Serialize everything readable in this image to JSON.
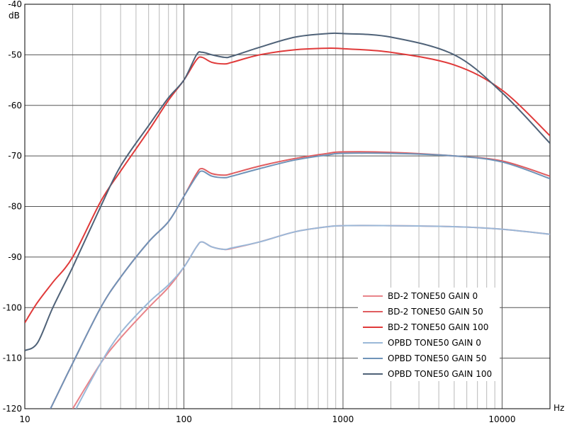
{
  "chart_data": {
    "type": "line",
    "title": "",
    "xlabel": "Hz",
    "ylabel": "dB",
    "x_scale": "log",
    "xlim": [
      10,
      20000
    ],
    "ylim": [
      -120,
      -40
    ],
    "x_ticks": [
      10,
      100,
      1000,
      10000
    ],
    "x_tick_labels": [
      "10",
      "100",
      "1000",
      "10000"
    ],
    "y_ticks": [
      -40,
      -50,
      -60,
      -70,
      -80,
      -90,
      -100,
      -110,
      -120
    ],
    "y_tick_labels": [
      "-40",
      "-50",
      "-60",
      "-70",
      "-80",
      "-90",
      "-100",
      "-110",
      "-120"
    ],
    "grid": true,
    "legend_position": "bottom-right",
    "series": [
      {
        "name": "BD-2 TONE50 GAIN 0",
        "color": "#e8848a",
        "x": [
          20,
          30,
          40,
          60,
          80,
          100,
          120,
          130,
          150,
          180,
          200,
          300,
          500,
          800,
          1000,
          2000,
          5000,
          10000,
          20000
        ],
        "y": [
          -120,
          -111,
          -106,
          -100,
          -96,
          -92,
          -88,
          -87,
          -88,
          -88.5,
          -88.3,
          -87,
          -85,
          -84,
          -83.8,
          -83.8,
          -84,
          -84.5,
          -85.5
        ]
      },
      {
        "name": "BD-2 TONE50 GAIN 50",
        "color": "#e05d60",
        "x": [
          14.5,
          20,
          30,
          40,
          60,
          80,
          100,
          120,
          130,
          150,
          180,
          200,
          300,
          500,
          800,
          1000,
          2000,
          5000,
          10000,
          20000
        ],
        "y": [
          -120,
          -111,
          -100,
          -94,
          -87,
          -83,
          -78,
          -73.5,
          -72.5,
          -73.5,
          -73.8,
          -73.5,
          -72,
          -70.5,
          -69.5,
          -69.2,
          -69.3,
          -70,
          -71,
          -74
        ]
      },
      {
        "name": "BD-2 TONE50 GAIN 100",
        "color": "#e03a3a",
        "x": [
          10,
          12,
          15,
          20,
          30,
          40,
          60,
          80,
          100,
          120,
          130,
          150,
          180,
          200,
          300,
          500,
          800,
          1000,
          2000,
          5000,
          10000,
          20000
        ],
        "y": [
          -103,
          -99,
          -95,
          -90,
          -79,
          -73,
          -65,
          -59,
          -55,
          -51,
          -50.5,
          -51.5,
          -51.8,
          -51.5,
          -50,
          -49,
          -48.7,
          -48.8,
          -49.5,
          -52,
          -57,
          -66
        ]
      },
      {
        "name": "OPBD TONE50 GAIN 0",
        "color": "#9ab8d8",
        "x": [
          21,
          30,
          40,
          60,
          80,
          100,
          120,
          130,
          150,
          180,
          200,
          300,
          500,
          800,
          1000,
          2000,
          5000,
          10000,
          20000
        ],
        "y": [
          -120,
          -111,
          -105,
          -99,
          -95.5,
          -92,
          -88,
          -87,
          -88,
          -88.5,
          -88.2,
          -87,
          -85,
          -84,
          -83.8,
          -83.8,
          -84,
          -84.5,
          -85.5
        ]
      },
      {
        "name": "OPBD TONE50 GAIN 50",
        "color": "#6f93b8",
        "x": [
          14.5,
          20,
          30,
          40,
          60,
          80,
          100,
          120,
          130,
          150,
          180,
          200,
          300,
          500,
          800,
          1000,
          2000,
          5000,
          10000,
          20000
        ],
        "y": [
          -120,
          -111,
          -100,
          -94,
          -87,
          -83,
          -78,
          -74,
          -73,
          -74,
          -74.3,
          -74,
          -72.5,
          -70.8,
          -69.8,
          -69.5,
          -69.5,
          -70,
          -71.2,
          -74.5
        ]
      },
      {
        "name": "OPBD TONE50 GAIN 100",
        "color": "#4f6278",
        "x": [
          10,
          12,
          15,
          20,
          30,
          40,
          60,
          80,
          100,
          120,
          130,
          150,
          180,
          200,
          300,
          500,
          800,
          1000,
          2000,
          5000,
          10000,
          20000
        ],
        "y": [
          -108.5,
          -107,
          -100,
          -92,
          -80,
          -72,
          -64,
          -58.5,
          -55,
          -50,
          -49.5,
          -50,
          -50.5,
          -50.3,
          -48.5,
          -46.5,
          -45.8,
          -45.8,
          -46.5,
          -50,
          -57.5,
          -67.5
        ]
      }
    ]
  }
}
